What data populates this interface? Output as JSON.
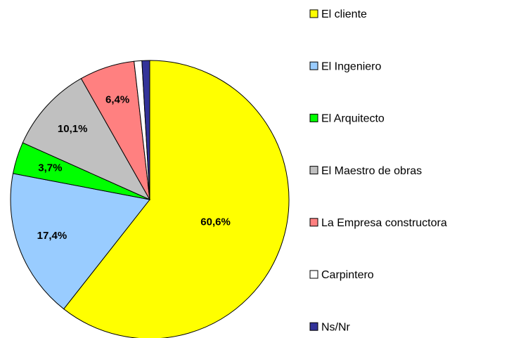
{
  "chart_data": {
    "type": "pie",
    "categories": [
      "El cliente",
      "El Ingeniero",
      "El Arquitecto",
      "El Maestro de obras",
      "La Empresa constructora",
      "Carpintero",
      "Ns/Nr"
    ],
    "values": [
      60.6,
      17.4,
      3.7,
      10.1,
      6.4,
      0.9,
      0.9
    ],
    "value_labels": [
      "60,6%",
      "17,4%",
      "3,7%",
      "10,1%",
      "6,4%",
      null,
      null
    ],
    "colors": [
      "#ffff00",
      "#99ccff",
      "#00ff00",
      "#c0c0c0",
      "#ff8080",
      "#ffffff",
      "#333399"
    ]
  }
}
